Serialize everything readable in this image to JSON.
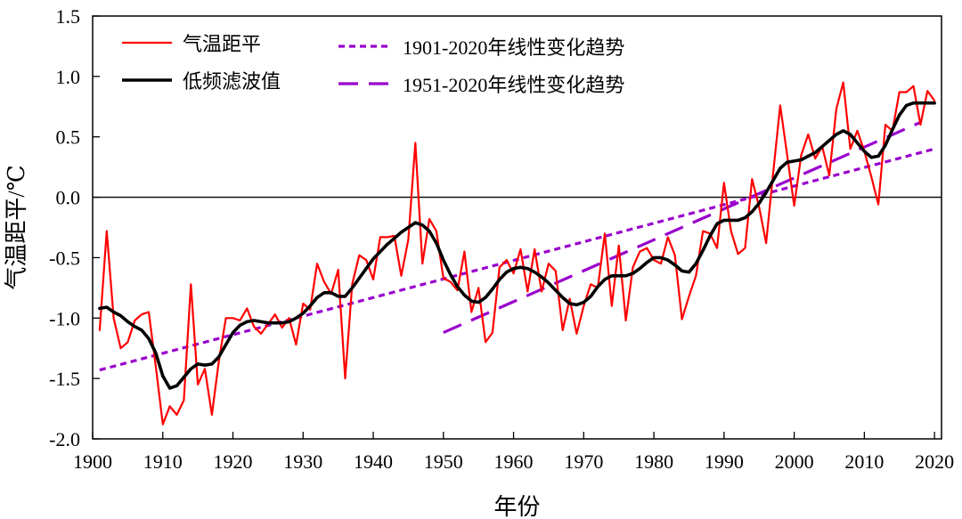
{
  "chart_data": {
    "type": "line",
    "xlabel": "年份",
    "ylabel": "气温距平/℃",
    "xlim": [
      1900,
      2021
    ],
    "ylim": [
      -2.0,
      1.5
    ],
    "x_ticks": [
      1900,
      1910,
      1920,
      1930,
      1940,
      1950,
      1960,
      1970,
      1980,
      1990,
      2000,
      2010,
      2020
    ],
    "y_ticks": [
      -2.0,
      -1.5,
      -1.0,
      -0.5,
      0.0,
      0.5,
      1.0,
      1.5
    ],
    "y_tick_labels": [
      "-2.0",
      "-1.5",
      "-1.0",
      "-0.5",
      "0.0",
      "0.5",
      "1.0",
      "1.5"
    ],
    "zero_line": 0.0,
    "x": [
      1901,
      1902,
      1903,
      1904,
      1905,
      1906,
      1907,
      1908,
      1909,
      1910,
      1911,
      1912,
      1913,
      1914,
      1915,
      1916,
      1917,
      1918,
      1919,
      1920,
      1921,
      1922,
      1923,
      1924,
      1925,
      1926,
      1927,
      1928,
      1929,
      1930,
      1931,
      1932,
      1933,
      1934,
      1935,
      1936,
      1937,
      1938,
      1939,
      1940,
      1941,
      1942,
      1943,
      1944,
      1945,
      1946,
      1947,
      1948,
      1949,
      1950,
      1951,
      1952,
      1953,
      1954,
      1955,
      1956,
      1957,
      1958,
      1959,
      1960,
      1961,
      1962,
      1963,
      1964,
      1965,
      1966,
      1967,
      1968,
      1969,
      1970,
      1971,
      1972,
      1973,
      1974,
      1975,
      1976,
      1977,
      1978,
      1979,
      1980,
      1981,
      1982,
      1983,
      1984,
      1985,
      1986,
      1987,
      1988,
      1989,
      1990,
      1991,
      1992,
      1993,
      1994,
      1995,
      1996,
      1997,
      1998,
      1999,
      2000,
      2001,
      2002,
      2003,
      2004,
      2005,
      2006,
      2007,
      2008,
      2009,
      2010,
      2011,
      2012,
      2013,
      2014,
      2015,
      2016,
      2017,
      2018,
      2019,
      2020
    ],
    "series": [
      {
        "name": "气温距平",
        "color": "#ff0000",
        "values": [
          -1.1,
          -0.28,
          -1.0,
          -1.25,
          -1.2,
          -1.02,
          -0.97,
          -0.95,
          -1.4,
          -1.88,
          -1.73,
          -1.8,
          -1.68,
          -0.72,
          -1.55,
          -1.42,
          -1.8,
          -1.35,
          -1.0,
          -1.0,
          -1.02,
          -0.92,
          -1.07,
          -1.13,
          -1.05,
          -0.97,
          -1.08,
          -1.0,
          -1.22,
          -0.88,
          -0.93,
          -0.55,
          -0.7,
          -0.8,
          -0.6,
          -1.5,
          -0.72,
          -0.48,
          -0.52,
          -0.68,
          -0.33,
          -0.33,
          -0.32,
          -0.65,
          -0.35,
          0.45,
          -0.55,
          -0.18,
          -0.28,
          -0.67,
          -0.7,
          -0.77,
          -0.45,
          -0.95,
          -0.75,
          -1.2,
          -1.12,
          -0.58,
          -0.52,
          -0.63,
          -0.43,
          -0.78,
          -0.43,
          -0.78,
          -0.55,
          -0.61,
          -1.1,
          -0.84,
          -1.13,
          -0.9,
          -0.72,
          -0.75,
          -0.3,
          -0.9,
          -0.4,
          -1.02,
          -0.58,
          -0.45,
          -0.42,
          -0.52,
          -0.55,
          -0.33,
          -0.48,
          -1.01,
          -0.82,
          -0.65,
          -0.28,
          -0.3,
          -0.42,
          0.12,
          -0.28,
          -0.47,
          -0.42,
          0.15,
          -0.08,
          -0.38,
          0.2,
          0.76,
          0.35,
          -0.07,
          0.35,
          0.52,
          0.32,
          0.42,
          0.18,
          0.73,
          0.95,
          0.4,
          0.55,
          0.38,
          0.17,
          -0.06,
          0.6,
          0.55,
          0.87,
          0.87,
          0.92,
          0.6,
          0.88,
          0.8
        ]
      },
      {
        "name": "低频滤波值",
        "color": "#000000",
        "values": [
          -0.92,
          -0.91,
          -0.95,
          -0.98,
          -1.03,
          -1.07,
          -1.1,
          -1.17,
          -1.29,
          -1.48,
          -1.58,
          -1.56,
          -1.49,
          -1.42,
          -1.38,
          -1.39,
          -1.38,
          -1.32,
          -1.22,
          -1.12,
          -1.06,
          -1.03,
          -1.02,
          -1.03,
          -1.04,
          -1.04,
          -1.04,
          -1.03,
          -1.0,
          -0.96,
          -0.9,
          -0.83,
          -0.79,
          -0.79,
          -0.82,
          -0.82,
          -0.75,
          -0.67,
          -0.59,
          -0.51,
          -0.45,
          -0.39,
          -0.34,
          -0.29,
          -0.25,
          -0.21,
          -0.23,
          -0.28,
          -0.38,
          -0.52,
          -0.64,
          -0.74,
          -0.81,
          -0.86,
          -0.87,
          -0.83,
          -0.76,
          -0.68,
          -0.62,
          -0.59,
          -0.58,
          -0.59,
          -0.62,
          -0.66,
          -0.71,
          -0.77,
          -0.83,
          -0.88,
          -0.89,
          -0.87,
          -0.82,
          -0.74,
          -0.68,
          -0.65,
          -0.65,
          -0.65,
          -0.63,
          -0.59,
          -0.54,
          -0.5,
          -0.5,
          -0.52,
          -0.56,
          -0.61,
          -0.62,
          -0.55,
          -0.44,
          -0.32,
          -0.22,
          -0.19,
          -0.19,
          -0.19,
          -0.17,
          -0.12,
          -0.05,
          0.04,
          0.14,
          0.24,
          0.29,
          0.3,
          0.31,
          0.34,
          0.37,
          0.42,
          0.47,
          0.52,
          0.55,
          0.52,
          0.45,
          0.38,
          0.33,
          0.34,
          0.43,
          0.56,
          0.68,
          0.76,
          0.78,
          0.78,
          0.78,
          0.78
        ]
      }
    ],
    "trends": [
      {
        "name": "1901-2020年线性变化趋势",
        "color": "#9900cc",
        "x": [
          1901,
          2020
        ],
        "y": [
          -1.43,
          0.4
        ],
        "dash": "short"
      },
      {
        "name": "1951-2020年线性变化趋势",
        "color": "#9900cc",
        "x": [
          1950,
          2018
        ],
        "y": [
          -1.12,
          0.62
        ],
        "dash": "long"
      }
    ],
    "legend": {
      "position": "top-left",
      "items": [
        {
          "label": "气温距平",
          "color": "#ff0000",
          "style": "solid"
        },
        {
          "label": "低频滤波值",
          "color": "#000000",
          "style": "solid-thick"
        },
        {
          "label": "1901-2020年线性变化趋势",
          "color": "#9900cc",
          "style": "short-dash"
        },
        {
          "label": "1951-2020年线性变化趋势",
          "color": "#9900cc",
          "style": "long-dash"
        }
      ]
    }
  }
}
